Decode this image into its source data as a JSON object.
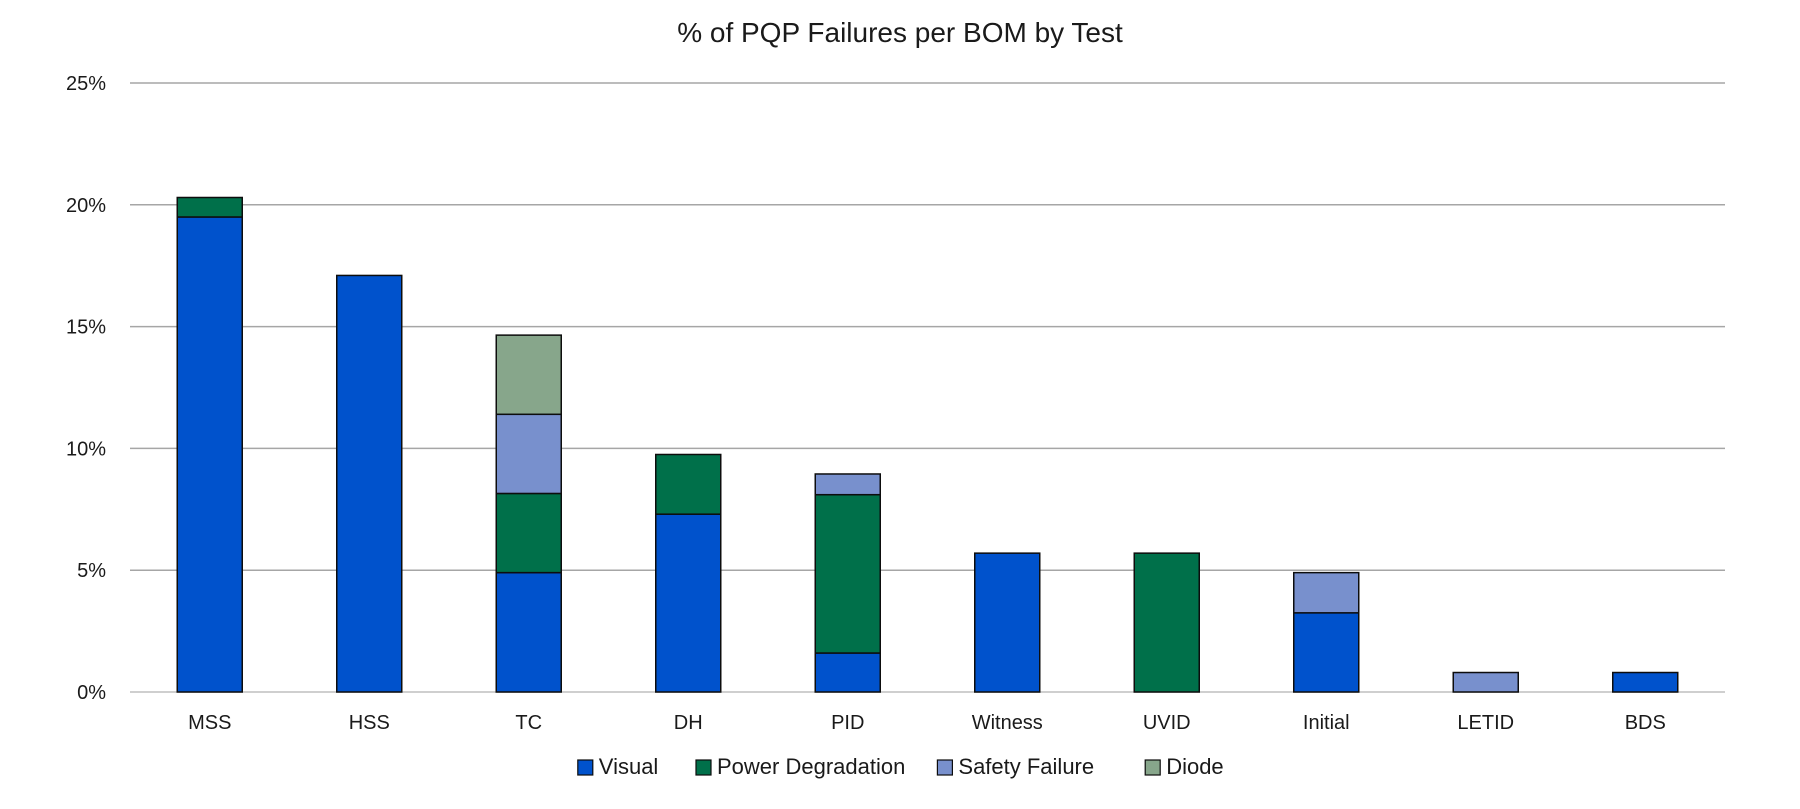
{
  "chart_data": {
    "type": "bar",
    "stacked": true,
    "title": "% of PQP Failures per BOM by Test",
    "xlabel": "",
    "ylabel": "",
    "ylim": [
      0,
      25
    ],
    "yticks": [
      0,
      5,
      10,
      15,
      20,
      25
    ],
    "ytick_labels": [
      "0%",
      "5%",
      "10%",
      "15%",
      "20%",
      "25%"
    ],
    "grid": true,
    "legend_position": "bottom",
    "categories": [
      "MSS",
      "HSS",
      "TC",
      "DH",
      "PID",
      "Witness",
      "UVID",
      "Initial",
      "LETID",
      "BDS"
    ],
    "series": [
      {
        "name": "Visual",
        "color": "#0052cc",
        "values": [
          19.5,
          17.1,
          4.9,
          7.3,
          1.6,
          5.7,
          0,
          3.25,
          0,
          0.8
        ]
      },
      {
        "name": "Power Degradation",
        "color": "#00704a",
        "values": [
          0.8,
          0,
          3.25,
          2.45,
          6.5,
          0,
          5.7,
          0,
          0,
          0
        ]
      },
      {
        "name": "Safety Failure",
        "color": "#7890cd",
        "values": [
          0,
          0,
          3.25,
          0,
          0.85,
          0,
          0,
          1.65,
          0.8,
          0
        ]
      },
      {
        "name": "Diode",
        "color": "#87a68b",
        "values": [
          0,
          0,
          3.25,
          0,
          0,
          0,
          0,
          0,
          0,
          0
        ]
      }
    ]
  }
}
